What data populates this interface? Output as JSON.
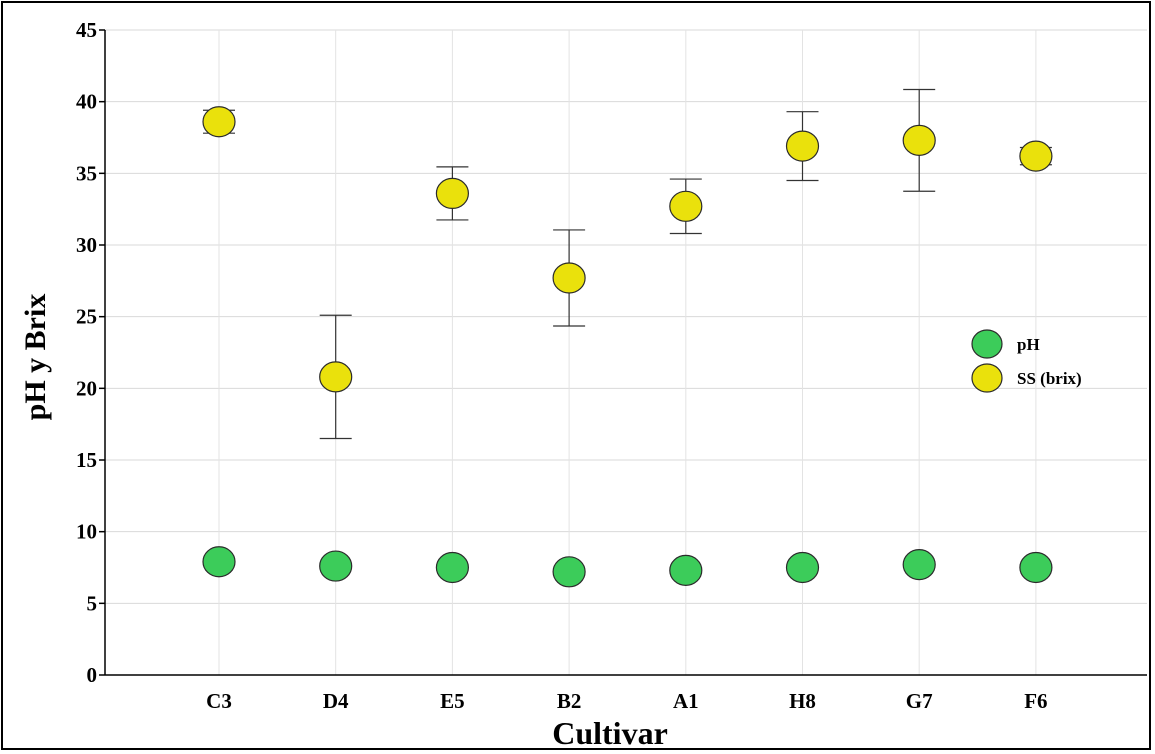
{
  "chart_data": {
    "type": "scatter",
    "title": "",
    "xlabel": "Cultivar",
    "ylabel": "pH y Brix",
    "categories": [
      "C3",
      "D4",
      "E5",
      "B2",
      "A1",
      "H8",
      "G7",
      "F6"
    ],
    "ylim": [
      0,
      45
    ],
    "yticks": [
      "0",
      "5",
      "10",
      "15",
      "20",
      "25",
      "30",
      "35",
      "40",
      "45"
    ],
    "grid": true,
    "legend_position": "right",
    "series": [
      {
        "name": "pH",
        "color": "#3ccc5a",
        "values": [
          7.9,
          7.6,
          7.5,
          7.2,
          7.3,
          7.5,
          7.7,
          7.5
        ],
        "error": [
          0,
          0,
          0,
          0,
          0,
          0,
          0,
          0
        ]
      },
      {
        "name": "SS (brix)",
        "color": "#eae10c",
        "values": [
          38.6,
          20.8,
          33.6,
          27.7,
          32.7,
          36.9,
          37.3,
          36.2
        ],
        "error": [
          0.8,
          4.3,
          1.85,
          3.35,
          1.9,
          2.4,
          3.55,
          0.6
        ]
      }
    ]
  }
}
